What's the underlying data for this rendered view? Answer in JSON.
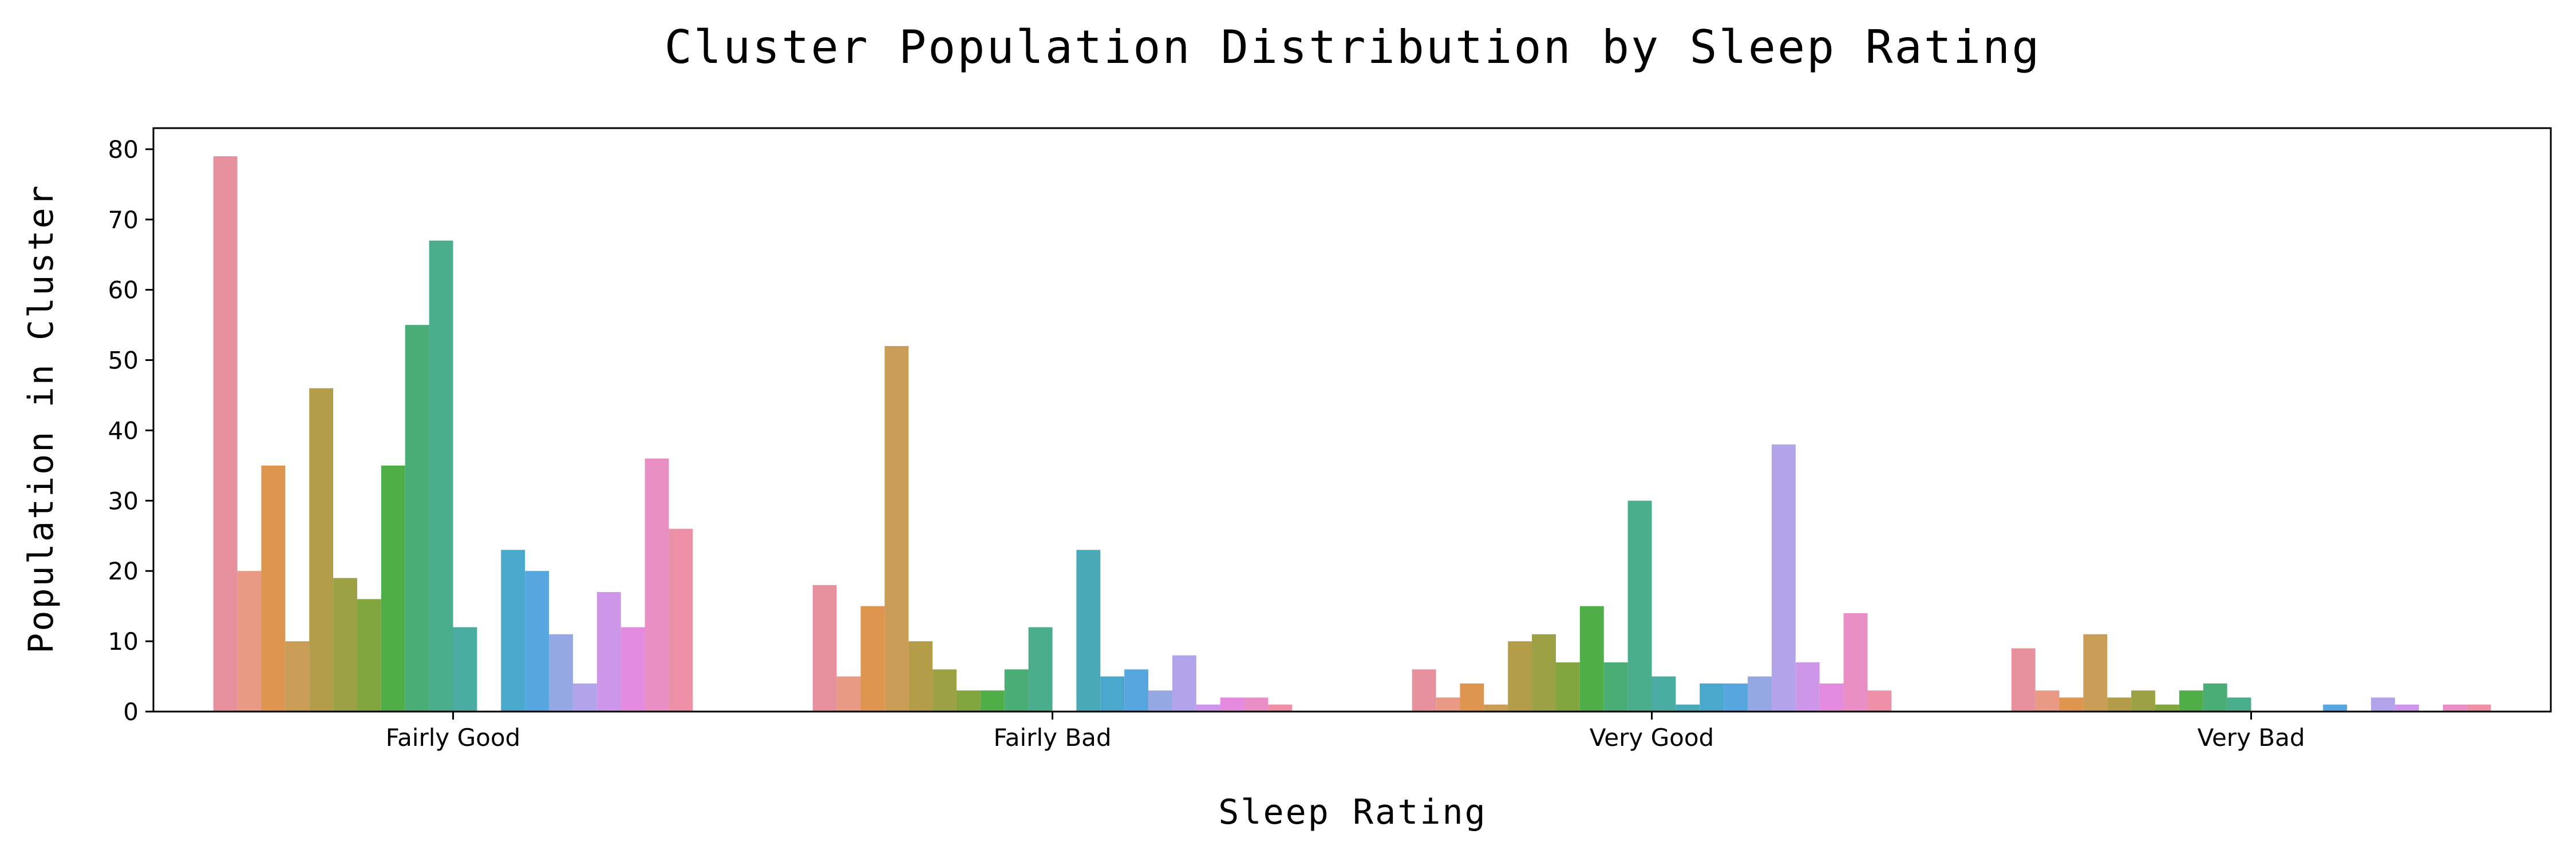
{
  "chart_data": {
    "type": "bar",
    "title": "Cluster Population Distribution by Sleep Rating",
    "xlabel": "Sleep Rating",
    "ylabel": "Population in Cluster",
    "categories": [
      "Fairly Good",
      "Fairly Bad",
      "Very Good",
      "Very Bad"
    ],
    "ylim": [
      0,
      83
    ],
    "yticks": [
      0,
      10,
      20,
      30,
      40,
      50,
      60,
      70,
      80
    ],
    "grid": false,
    "legend": "none",
    "series": [
      {
        "color": "#e8919e",
        "values": [
          79,
          18,
          6,
          9
        ]
      },
      {
        "color": "#e89a84",
        "values": [
          20,
          5,
          2,
          3
        ]
      },
      {
        "color": "#dd9550",
        "values": [
          35,
          15,
          4,
          2
        ]
      },
      {
        "color": "#c99d55",
        "values": [
          10,
          52,
          1,
          11
        ]
      },
      {
        "color": "#b39d48",
        "values": [
          46,
          10,
          10,
          2
        ]
      },
      {
        "color": "#9ca144",
        "values": [
          19,
          6,
          11,
          3
        ]
      },
      {
        "color": "#82a53f",
        "values": [
          16,
          3,
          7,
          1
        ]
      },
      {
        "color": "#4fae48",
        "values": [
          35,
          3,
          15,
          3
        ]
      },
      {
        "color": "#4bad76",
        "values": [
          55,
          6,
          7,
          4
        ]
      },
      {
        "color": "#4aad8c",
        "values": [
          67,
          12,
          30,
          2
        ]
      },
      {
        "color": "#4aaca3",
        "values": [
          12,
          0,
          5,
          0
        ]
      },
      {
        "color": "#4aa9b6",
        "values": [
          0,
          23,
          1,
          0
        ]
      },
      {
        "color": "#4aa8cc",
        "values": [
          23,
          5,
          4,
          0
        ]
      },
      {
        "color": "#58a6e0",
        "values": [
          20,
          6,
          4,
          1
        ]
      },
      {
        "color": "#96a8e4",
        "values": [
          11,
          3,
          5,
          0
        ]
      },
      {
        "color": "#b2a3ea",
        "values": [
          4,
          8,
          38,
          2
        ]
      },
      {
        "color": "#cd96e8",
        "values": [
          17,
          1,
          7,
          1
        ]
      },
      {
        "color": "#e58bdf",
        "values": [
          12,
          2,
          4,
          0
        ]
      },
      {
        "color": "#ea8ec6",
        "values": [
          36,
          2,
          14,
          1
        ]
      },
      {
        "color": "#ec8fa7",
        "values": [
          26,
          1,
          3,
          1
        ]
      }
    ]
  }
}
